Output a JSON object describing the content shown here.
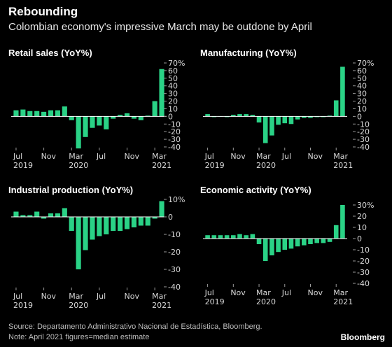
{
  "header": {
    "title": "Rebounding",
    "subtitle": "Colombian economy's impressive March may be outdone by April"
  },
  "footer": {
    "source": "Source: Departamento Administrativo Nacional de Estadística, Bloomberg.",
    "note": "Note: April 2021 figures=median estimate",
    "brand": "Bloomberg"
  },
  "colors": {
    "bar": "#2ad286",
    "background": "#000000",
    "zero_line": "#ffffff"
  },
  "chart_data": [
    {
      "type": "bar",
      "title": "Retail sales (YoY%)",
      "tick_unit": "%",
      "yticks": [
        -40,
        -30,
        -20,
        -10,
        0,
        10,
        20,
        30,
        40,
        50,
        60,
        70
      ],
      "ylim": [
        -40,
        70
      ],
      "x_tick_labels": [
        {
          "index": 0,
          "label": "Jul",
          "year": "2019"
        },
        {
          "index": 4,
          "label": "Nov"
        },
        {
          "index": 8,
          "label": "Mar",
          "year": "2020"
        },
        {
          "index": 12,
          "label": "Jul"
        },
        {
          "index": 16,
          "label": "Nov"
        },
        {
          "index": 20,
          "label": "Mar",
          "year": "2021"
        }
      ],
      "values": [
        8,
        9,
        7,
        7,
        6,
        8,
        8,
        13,
        -5,
        -42,
        -27,
        -15,
        -12,
        -17,
        -3,
        2,
        4,
        -3,
        -5,
        1,
        20,
        62
      ]
    },
    {
      "type": "bar",
      "title": "Manufacturing (YoY%)",
      "tick_unit": "%",
      "yticks": [
        -40,
        -30,
        -20,
        -10,
        0,
        10,
        20,
        30,
        40,
        50,
        60,
        70
      ],
      "ylim": [
        -40,
        70
      ],
      "x_tick_labels": [
        {
          "index": 0,
          "label": "Jul",
          "year": "2019"
        },
        {
          "index": 4,
          "label": "Nov"
        },
        {
          "index": 8,
          "label": "Mar",
          "year": "2020"
        },
        {
          "index": 12,
          "label": "Jul"
        },
        {
          "index": 16,
          "label": "Nov"
        },
        {
          "index": 20,
          "label": "Mar",
          "year": "2021"
        }
      ],
      "values": [
        3,
        -1,
        0,
        -1,
        2,
        3,
        3,
        2,
        -8,
        -35,
        -25,
        -11,
        -9,
        -10,
        -4,
        -2,
        -2,
        -1,
        -1,
        1,
        21,
        65
      ]
    },
    {
      "type": "bar",
      "title": "Industrial production (YoY%)",
      "tick_unit": "%",
      "yticks": [
        -40,
        -30,
        -20,
        -10,
        0,
        10
      ],
      "ylim": [
        -40,
        10
      ],
      "x_tick_labels": [
        {
          "index": 0,
          "label": "Jul",
          "year": "2019"
        },
        {
          "index": 4,
          "label": "Nov"
        },
        {
          "index": 8,
          "label": "Mar",
          "year": "2020"
        },
        {
          "index": 12,
          "label": "Jul"
        },
        {
          "index": 16,
          "label": "Nov"
        },
        {
          "index": 20,
          "label": "Mar",
          "year": "2021"
        }
      ],
      "values": [
        3,
        1,
        1,
        3,
        -1,
        2,
        2,
        5,
        -8,
        -30,
        -19,
        -13,
        -11,
        -10,
        -8,
        -8,
        -7,
        -6,
        -5,
        -5,
        -1,
        9
      ]
    },
    {
      "type": "bar",
      "title": "Economic activity (YoY%)",
      "tick_unit": "%",
      "yticks": [
        -40,
        -30,
        -20,
        -10,
        0,
        10,
        20,
        30
      ],
      "ylim": [
        -40,
        30
      ],
      "x_tick_labels": [
        {
          "index": 0,
          "label": "Jul",
          "year": "2019"
        },
        {
          "index": 4,
          "label": "Nov"
        },
        {
          "index": 8,
          "label": "Mar",
          "year": "2020"
        },
        {
          "index": 12,
          "label": "Jul"
        },
        {
          "index": 16,
          "label": "Nov"
        },
        {
          "index": 20,
          "label": "Mar",
          "year": "2021"
        }
      ],
      "values": [
        3,
        3,
        3,
        3,
        3,
        4,
        3,
        4,
        -5,
        -20,
        -15,
        -12,
        -10,
        -9,
        -7,
        -6,
        -5,
        -4,
        -4,
        -3,
        12,
        30
      ]
    }
  ]
}
